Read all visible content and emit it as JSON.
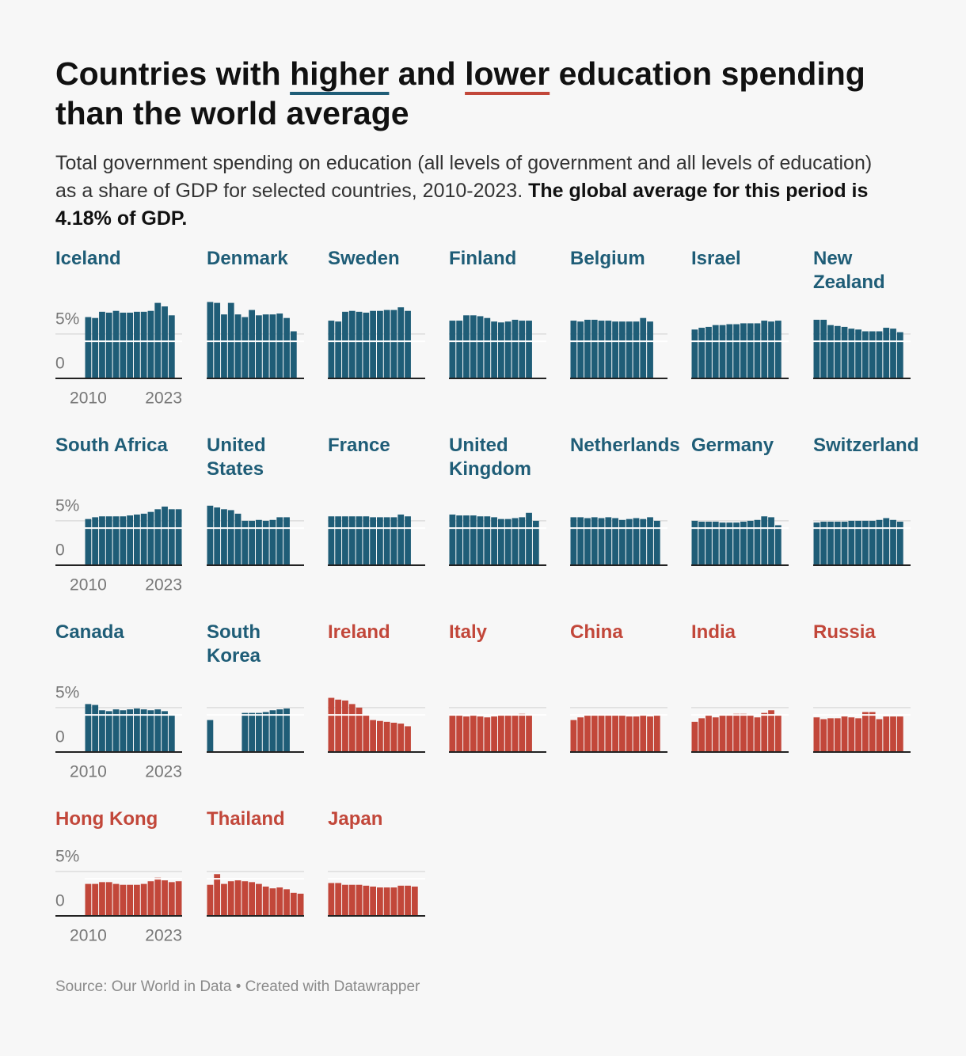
{
  "chart_data": {
    "type": "bar",
    "title": [
      {
        "text": "Countries with "
      },
      {
        "text": "higher",
        "underline": "#1f5d77"
      },
      {
        "text": " and "
      },
      {
        "text": "lower",
        "underline": "#c2473a"
      },
      {
        "text": " education spending than the world average"
      }
    ],
    "subtitle": "Total government spending on education (all levels of government and all levels of education) as a share of GDP for selected countries, 2010-2023.",
    "subtitle_bold": "The global average for this period is 4.18% of GDP.",
    "source": "Source: Our World in Data • Created with Datawrapper",
    "x": [
      2010,
      2011,
      2012,
      2013,
      2014,
      2015,
      2016,
      2017,
      2018,
      2019,
      2020,
      2021,
      2022,
      2023
    ],
    "xticks": [
      2010,
      2023
    ],
    "ylim": [
      0,
      9
    ],
    "yticks": [
      0,
      {
        "value": 5,
        "label": "5%"
      }
    ],
    "grid": true,
    "reference_line": 4.18,
    "panels": [
      {
        "name": "Iceland",
        "color": "#1f5d77",
        "values": [
          6.9,
          6.8,
          7.5,
          7.4,
          7.6,
          7.4,
          7.4,
          7.5,
          7.5,
          7.6,
          8.5,
          8.1,
          7.1,
          null
        ]
      },
      {
        "name": "Denmark",
        "color": "#1f5d77",
        "values": [
          8.6,
          8.5,
          7.2,
          8.5,
          7.2,
          6.9,
          7.7,
          7.1,
          7.2,
          7.2,
          7.3,
          6.8,
          5.3,
          null
        ]
      },
      {
        "name": "Sweden",
        "color": "#1f5d77",
        "values": [
          6.5,
          6.4,
          7.5,
          7.6,
          7.5,
          7.4,
          7.6,
          7.6,
          7.7,
          7.7,
          8.0,
          7.6,
          null,
          null
        ]
      },
      {
        "name": "Finland",
        "color": "#1f5d77",
        "values": [
          6.5,
          6.5,
          7.1,
          7.1,
          7.0,
          6.8,
          6.4,
          6.3,
          6.4,
          6.6,
          6.5,
          6.5,
          null,
          null
        ]
      },
      {
        "name": "Belgium",
        "color": "#1f5d77",
        "values": [
          6.5,
          6.4,
          6.6,
          6.6,
          6.5,
          6.5,
          6.4,
          6.4,
          6.4,
          6.4,
          6.8,
          6.4,
          null,
          null
        ]
      },
      {
        "name": "Israel",
        "color": "#1f5d77",
        "values": [
          5.5,
          5.7,
          5.8,
          6.0,
          6.0,
          6.1,
          6.1,
          6.2,
          6.2,
          6.2,
          6.5,
          6.4,
          6.5,
          null
        ]
      },
      {
        "name": "New Zealand",
        "color": "#1f5d77",
        "values": [
          6.6,
          6.6,
          6.0,
          5.9,
          5.8,
          5.6,
          5.5,
          5.3,
          5.3,
          5.3,
          5.7,
          5.6,
          5.2,
          null
        ]
      },
      {
        "name": "South Africa",
        "color": "#1f5d77",
        "values": [
          5.2,
          5.4,
          5.5,
          5.5,
          5.5,
          5.5,
          5.6,
          5.7,
          5.8,
          6.0,
          6.3,
          6.6,
          6.3,
          6.3
        ]
      },
      {
        "name": "United States",
        "color": "#1f5d77",
        "values": [
          6.7,
          6.5,
          6.3,
          6.2,
          5.8,
          5.0,
          5.0,
          5.1,
          5.0,
          5.1,
          5.4,
          5.4,
          null,
          null
        ]
      },
      {
        "name": "France",
        "color": "#1f5d77",
        "values": [
          5.5,
          5.5,
          5.5,
          5.5,
          5.5,
          5.5,
          5.4,
          5.4,
          5.4,
          5.4,
          5.7,
          5.5,
          null,
          null
        ]
      },
      {
        "name": "United Kingdom",
        "color": "#1f5d77",
        "values": [
          5.7,
          5.6,
          5.6,
          5.6,
          5.5,
          5.5,
          5.4,
          5.2,
          5.2,
          5.3,
          5.4,
          5.9,
          5.0,
          null
        ]
      },
      {
        "name": "Netherlands",
        "color": "#1f5d77",
        "values": [
          5.4,
          5.4,
          5.3,
          5.4,
          5.3,
          5.4,
          5.3,
          5.1,
          5.2,
          5.3,
          5.2,
          5.4,
          5.0,
          null
        ]
      },
      {
        "name": "Germany",
        "color": "#1f5d77",
        "values": [
          5.0,
          4.9,
          4.9,
          4.9,
          4.8,
          4.8,
          4.8,
          4.9,
          5.0,
          5.1,
          5.5,
          5.4,
          4.5,
          null
        ]
      },
      {
        "name": "Switzerland",
        "color": "#1f5d77",
        "values": [
          4.8,
          4.9,
          4.9,
          4.9,
          4.9,
          5.0,
          5.0,
          5.0,
          5.0,
          5.1,
          5.3,
          5.1,
          4.9,
          null
        ]
      },
      {
        "name": "Canada",
        "color": "#1f5d77",
        "values": [
          5.4,
          5.3,
          4.7,
          4.6,
          4.8,
          4.7,
          4.8,
          4.9,
          4.8,
          4.7,
          4.8,
          4.6,
          4.2,
          null
        ]
      },
      {
        "name": "South Korea",
        "color": "#1f5d77",
        "values": [
          3.6,
          null,
          null,
          null,
          null,
          4.4,
          4.4,
          4.4,
          4.5,
          4.7,
          4.8,
          4.9,
          null,
          null
        ]
      },
      {
        "name": "Ireland",
        "color": "#c2473a",
        "values": [
          6.1,
          5.9,
          5.8,
          5.4,
          5.0,
          4.2,
          3.6,
          3.5,
          3.4,
          3.3,
          3.2,
          2.9,
          null,
          null
        ]
      },
      {
        "name": "Italy",
        "color": "#c2473a",
        "values": [
          4.1,
          4.1,
          4.0,
          4.1,
          4.0,
          3.9,
          4.0,
          4.1,
          4.1,
          4.2,
          4.3,
          4.1,
          null,
          null
        ]
      },
      {
        "name": "China",
        "color": "#c2473a",
        "values": [
          3.6,
          3.9,
          4.1,
          4.2,
          4.2,
          4.2,
          4.1,
          4.1,
          4.0,
          4.0,
          4.1,
          4.0,
          4.1,
          null
        ]
      },
      {
        "name": "India",
        "color": "#c2473a",
        "values": [
          3.4,
          3.8,
          4.1,
          3.9,
          4.1,
          4.2,
          4.3,
          4.3,
          4.2,
          3.9,
          4.4,
          4.7,
          4.2,
          null
        ]
      },
      {
        "name": "Russia",
        "color": "#c2473a",
        "values": [
          3.9,
          3.7,
          3.8,
          3.8,
          4.0,
          3.9,
          3.8,
          4.5,
          4.5,
          3.7,
          4.0,
          4.0,
          4.0,
          null
        ]
      },
      {
        "name": "Hong Kong",
        "color": "#c2473a",
        "values": [
          3.6,
          3.6,
          3.8,
          3.8,
          3.6,
          3.5,
          3.5,
          3.5,
          3.6,
          3.9,
          4.3,
          4.0,
          3.8,
          3.9
        ]
      },
      {
        "name": "Thailand",
        "color": "#c2473a",
        "values": [
          3.5,
          4.7,
          3.6,
          3.9,
          4.0,
          3.9,
          3.8,
          3.6,
          3.3,
          3.1,
          3.2,
          3.0,
          2.6,
          2.5
        ]
      },
      {
        "name": "Japan",
        "color": "#c2473a",
        "values": [
          3.7,
          3.7,
          3.5,
          3.5,
          3.5,
          3.4,
          3.3,
          3.2,
          3.2,
          3.2,
          3.4,
          3.4,
          3.3,
          null
        ]
      }
    ]
  }
}
